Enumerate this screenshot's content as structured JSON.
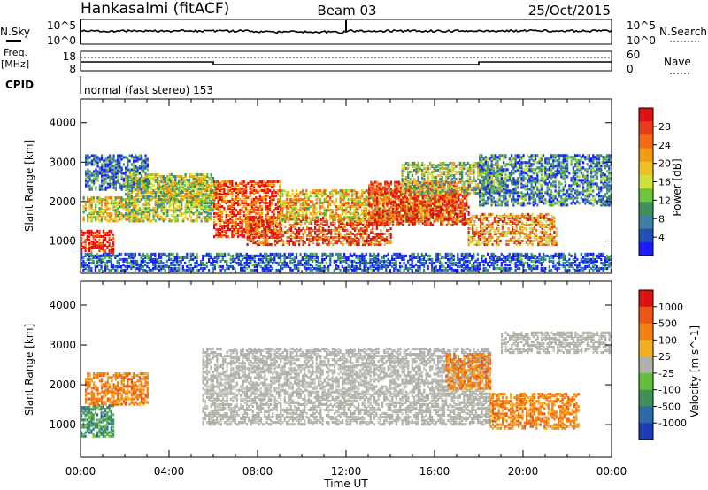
{
  "header": {
    "station": "Hankasalmi (fitACF)",
    "beam": "Beam 03",
    "date": "25/Oct/2015"
  },
  "nsky_panel": {
    "left_label": "N.Sky",
    "right_label": "N.Search",
    "left_ticks": [
      "10^5",
      "10^0"
    ],
    "right_ticks": [
      "10^5",
      "10^0"
    ]
  },
  "freq_panel": {
    "left_label_top": "Freq.",
    "left_label_unit": "[MHz]",
    "right_label": "Nave",
    "left_ticks": [
      "18",
      "8"
    ],
    "right_ticks": [
      "60",
      "0"
    ]
  },
  "cpid": {
    "label": "CPID",
    "text": "normal (fast stereo) 153"
  },
  "x_axis": {
    "label": "Time UT",
    "ticks": [
      "00:00",
      "04:00",
      "08:00",
      "12:00",
      "16:00",
      "20:00",
      "00:00"
    ]
  },
  "chart_data": [
    {
      "type": "heatmap",
      "name": "power",
      "ylabel": "Slant Range [km]",
      "yticks": [
        1000,
        2000,
        3000,
        4000
      ],
      "ylim": [
        180,
        4600
      ],
      "xlim_hours": [
        0,
        24
      ],
      "colorbar": {
        "label": "Power [dB]",
        "ticks": [
          "4",
          "8",
          "12",
          "16",
          "20",
          "24",
          "28"
        ],
        "colors": [
          "#1a1aff",
          "#1f4fb5",
          "#3e7fa3",
          "#3f8f5a",
          "#6ec43c",
          "#cfe23a",
          "#f0c020",
          "#f29a10",
          "#f26a12",
          "#ea3a18",
          "#e01010"
        ]
      },
      "regions": [
        {
          "t": [
            0.0,
            1.5
          ],
          "range": [
            700,
            1250
          ],
          "level": 0.92
        },
        {
          "t": [
            0.1,
            2.5
          ],
          "range": [
            1500,
            2100
          ],
          "level": 0.55
        },
        {
          "t": [
            0.2,
            3.0
          ],
          "range": [
            2300,
            3200
          ],
          "level": 0.2
        },
        {
          "t": [
            2.0,
            6.0
          ],
          "range": [
            1500,
            2700
          ],
          "level": 0.45
        },
        {
          "t": [
            3.5,
            6.2
          ],
          "range": [
            2000,
            2500
          ],
          "level": 0.5
        },
        {
          "t": [
            6.0,
            9.0
          ],
          "range": [
            1100,
            2500
          ],
          "level": 0.85
        },
        {
          "t": [
            7.5,
            14.0
          ],
          "range": [
            900,
            1600
          ],
          "level": 0.85
        },
        {
          "t": [
            9.0,
            17.0
          ],
          "range": [
            1500,
            2300
          ],
          "level": 0.6
        },
        {
          "t": [
            13.0,
            17.5
          ],
          "range": [
            1400,
            2500
          ],
          "level": 0.9
        },
        {
          "t": [
            14.5,
            19.0
          ],
          "range": [
            2200,
            3000
          ],
          "level": 0.45
        },
        {
          "t": [
            17.5,
            21.5
          ],
          "range": [
            900,
            1700
          ],
          "level": 0.7
        },
        {
          "t": [
            18.0,
            24.0
          ],
          "range": [
            1900,
            3200
          ],
          "level": 0.25
        },
        {
          "t": [
            0.0,
            24.0
          ],
          "range": [
            250,
            700
          ],
          "level": 0.15
        }
      ]
    },
    {
      "type": "heatmap",
      "name": "velocity",
      "ylabel": "Slant Range [km]",
      "yticks": [
        1000,
        2000,
        3000,
        4000
      ],
      "ylim": [
        180,
        4600
      ],
      "xlim_hours": [
        0,
        24
      ],
      "colorbar": {
        "label": "Velocity [m s^-1]",
        "ticks": [
          "1000",
          "500",
          "100",
          "25",
          "-25",
          "-100",
          "-500",
          "-1000"
        ],
        "colors": [
          "#1e3cb4",
          "#2a6aa8",
          "#3f8f5a",
          "#5fbf3a",
          "#b0b0a8",
          "#f2b020",
          "#f28010",
          "#ec5512",
          "#e01010"
        ]
      },
      "regions": [
        {
          "t": [
            0.0,
            1.5
          ],
          "range": [
            700,
            1500
          ],
          "class": "green"
        },
        {
          "t": [
            0.2,
            3.0
          ],
          "range": [
            1500,
            2300
          ],
          "class": "orange"
        },
        {
          "t": [
            5.5,
            18.5
          ],
          "range": [
            1000,
            2900
          ],
          "class": "gray"
        },
        {
          "t": [
            16.5,
            18.5
          ],
          "range": [
            1900,
            2800
          ],
          "class": "orange"
        },
        {
          "t": [
            18.5,
            22.5
          ],
          "range": [
            900,
            1800
          ],
          "class": "orange"
        },
        {
          "t": [
            19.0,
            24.0
          ],
          "range": [
            2800,
            3300
          ],
          "class": "gray"
        }
      ]
    }
  ]
}
